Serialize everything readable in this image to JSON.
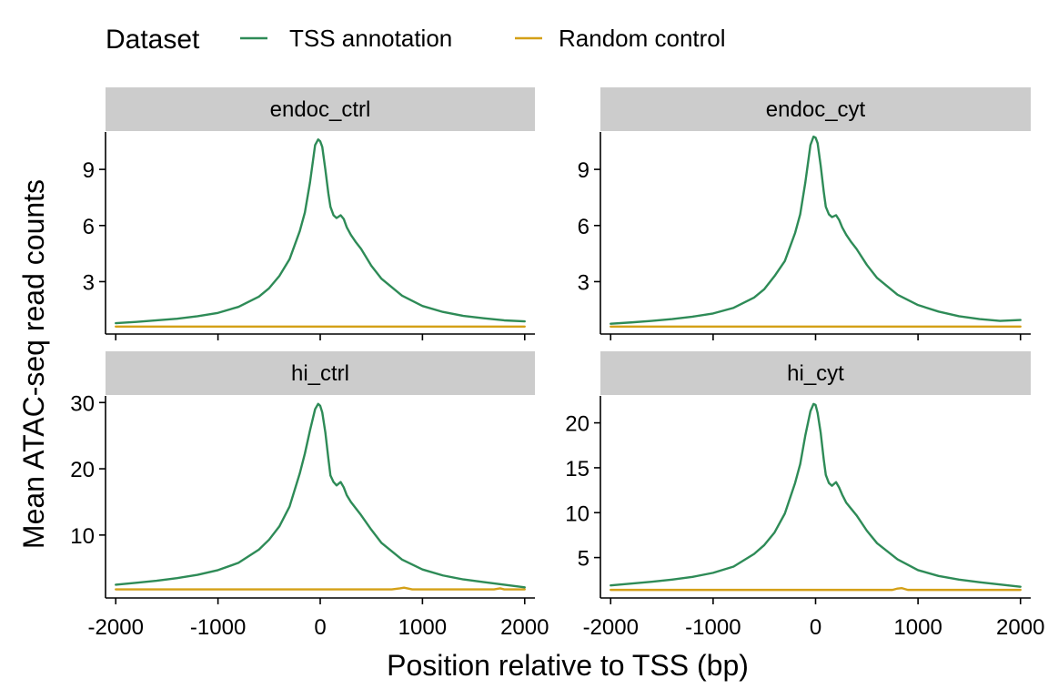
{
  "legend": {
    "title": "Dataset",
    "entries": [
      {
        "label": "TSS annotation",
        "color": "#2e8b57"
      },
      {
        "label": "Random control",
        "color": "#d4a017"
      }
    ]
  },
  "axes": {
    "xlabel": "Position relative to TSS (bp)",
    "ylabel": "Mean ATAC-seq read counts"
  },
  "chart_data": [
    {
      "type": "line",
      "panel": "endoc_ctrl",
      "xlim": [
        -2100,
        2100
      ],
      "ylim": [
        0.2,
        11.0
      ],
      "xticks": [
        -2000,
        -1000,
        0,
        1000,
        2000
      ],
      "yticks": [
        3,
        6,
        9
      ],
      "grid": false,
      "series": [
        {
          "name": "TSS annotation",
          "color": "#2e8b57",
          "x": [
            -2000,
            -1800,
            -1600,
            -1400,
            -1200,
            -1000,
            -800,
            -600,
            -500,
            -400,
            -300,
            -200,
            -150,
            -100,
            -50,
            -20,
            0,
            20,
            50,
            80,
            100,
            130,
            160,
            200,
            230,
            260,
            300,
            350,
            400,
            500,
            600,
            800,
            1000,
            1200,
            1400,
            1600,
            1800,
            2000
          ],
          "y": [
            0.78,
            0.85,
            0.93,
            1.02,
            1.15,
            1.33,
            1.65,
            2.2,
            2.65,
            3.3,
            4.2,
            5.7,
            6.7,
            8.3,
            10.3,
            10.6,
            10.5,
            10.2,
            9.0,
            7.7,
            7.0,
            6.55,
            6.4,
            6.55,
            6.35,
            5.9,
            5.5,
            5.1,
            4.75,
            3.85,
            3.15,
            2.25,
            1.7,
            1.38,
            1.17,
            1.04,
            0.93,
            0.88
          ]
        },
        {
          "name": "Random control",
          "color": "#d4a017",
          "x": [
            -2000,
            -1000,
            0,
            1000,
            2000
          ],
          "y": [
            0.6,
            0.6,
            0.6,
            0.6,
            0.6
          ]
        }
      ]
    },
    {
      "type": "line",
      "panel": "endoc_cyt",
      "xlim": [
        -2100,
        2100
      ],
      "ylim": [
        0.2,
        11.0
      ],
      "xticks": [
        -2000,
        -1000,
        0,
        1000,
        2000
      ],
      "yticks": [
        3,
        6,
        9
      ],
      "grid": false,
      "series": [
        {
          "name": "TSS annotation",
          "color": "#2e8b57",
          "x": [
            -2000,
            -1800,
            -1600,
            -1400,
            -1200,
            -1000,
            -800,
            -600,
            -500,
            -400,
            -300,
            -200,
            -150,
            -100,
            -50,
            -20,
            0,
            20,
            50,
            80,
            100,
            130,
            160,
            200,
            230,
            260,
            300,
            350,
            400,
            500,
            600,
            800,
            1000,
            1200,
            1400,
            1600,
            1800,
            2000
          ],
          "y": [
            0.75,
            0.82,
            0.9,
            1.0,
            1.13,
            1.3,
            1.6,
            2.15,
            2.6,
            3.3,
            4.1,
            5.6,
            6.6,
            8.3,
            10.3,
            10.75,
            10.7,
            10.4,
            9.2,
            7.8,
            7.0,
            6.6,
            6.45,
            6.55,
            6.3,
            5.9,
            5.5,
            5.1,
            4.75,
            3.9,
            3.2,
            2.3,
            1.75,
            1.4,
            1.15,
            1.0,
            0.9,
            0.95
          ]
        },
        {
          "name": "Random control",
          "color": "#d4a017",
          "x": [
            -2000,
            -1000,
            0,
            1000,
            2000
          ],
          "y": [
            0.6,
            0.6,
            0.6,
            0.6,
            0.6
          ]
        }
      ]
    },
    {
      "type": "line",
      "panel": "hi_ctrl",
      "xlim": [
        -2100,
        2100
      ],
      "ylim": [
        0.5,
        31.0
      ],
      "xticks": [
        -2000,
        -1000,
        0,
        1000,
        2000
      ],
      "yticks": [
        10,
        20,
        30
      ],
      "grid": false,
      "series": [
        {
          "name": "TSS annotation",
          "color": "#2e8b57",
          "x": [
            -2000,
            -1800,
            -1600,
            -1400,
            -1200,
            -1000,
            -800,
            -600,
            -500,
            -400,
            -300,
            -200,
            -150,
            -100,
            -50,
            -20,
            0,
            20,
            50,
            80,
            100,
            130,
            160,
            200,
            230,
            260,
            300,
            350,
            400,
            500,
            600,
            800,
            1000,
            1200,
            1400,
            1600,
            1800,
            2000
          ],
          "y": [
            2.5,
            2.8,
            3.1,
            3.5,
            4.0,
            4.7,
            5.8,
            7.8,
            9.3,
            11.3,
            14.3,
            19.3,
            22.3,
            25.8,
            29.0,
            29.8,
            29.5,
            28.5,
            25.5,
            21.5,
            19.0,
            18.0,
            17.5,
            18.0,
            17.2,
            16.0,
            15.0,
            14.0,
            13.0,
            10.8,
            8.8,
            6.3,
            4.8,
            3.9,
            3.3,
            2.9,
            2.5,
            2.1
          ]
        },
        {
          "name": "Random control",
          "color": "#d4a017",
          "x": [
            -2000,
            -1000,
            0,
            700,
            780,
            820,
            900,
            1000,
            1600,
            1700,
            1760,
            1800,
            2000
          ],
          "y": [
            1.8,
            1.8,
            1.8,
            1.8,
            1.95,
            2.05,
            1.8,
            1.8,
            1.8,
            1.8,
            1.95,
            1.8,
            1.8
          ]
        }
      ]
    },
    {
      "type": "line",
      "panel": "hi_cyt",
      "xlim": [
        -2100,
        2100
      ],
      "ylim": [
        0.5,
        23.0
      ],
      "xticks": [
        -2000,
        -1000,
        0,
        1000,
        2000
      ],
      "yticks": [
        5,
        10,
        15,
        20
      ],
      "grid": false,
      "series": [
        {
          "name": "TSS annotation",
          "color": "#2e8b57",
          "x": [
            -2000,
            -1800,
            -1600,
            -1400,
            -1200,
            -1000,
            -800,
            -600,
            -500,
            -400,
            -300,
            -200,
            -150,
            -100,
            -50,
            -20,
            0,
            20,
            50,
            80,
            100,
            130,
            160,
            200,
            230,
            260,
            300,
            350,
            400,
            500,
            600,
            800,
            1000,
            1200,
            1400,
            1600,
            1800,
            2000
          ],
          "y": [
            1.9,
            2.1,
            2.3,
            2.55,
            2.85,
            3.3,
            4.0,
            5.4,
            6.4,
            7.8,
            9.9,
            13.3,
            15.4,
            18.6,
            21.3,
            22.1,
            22.0,
            21.1,
            18.9,
            15.9,
            14.2,
            13.3,
            13.0,
            13.4,
            12.8,
            12.0,
            11.1,
            10.4,
            9.7,
            8.0,
            6.6,
            4.8,
            3.6,
            2.95,
            2.55,
            2.25,
            2.0,
            1.75
          ]
        },
        {
          "name": "Random control",
          "color": "#d4a017",
          "x": [
            -2000,
            -1000,
            0,
            750,
            800,
            840,
            900,
            1000,
            2000
          ],
          "y": [
            1.4,
            1.4,
            1.4,
            1.4,
            1.55,
            1.6,
            1.4,
            1.4,
            1.4
          ]
        }
      ]
    }
  ]
}
